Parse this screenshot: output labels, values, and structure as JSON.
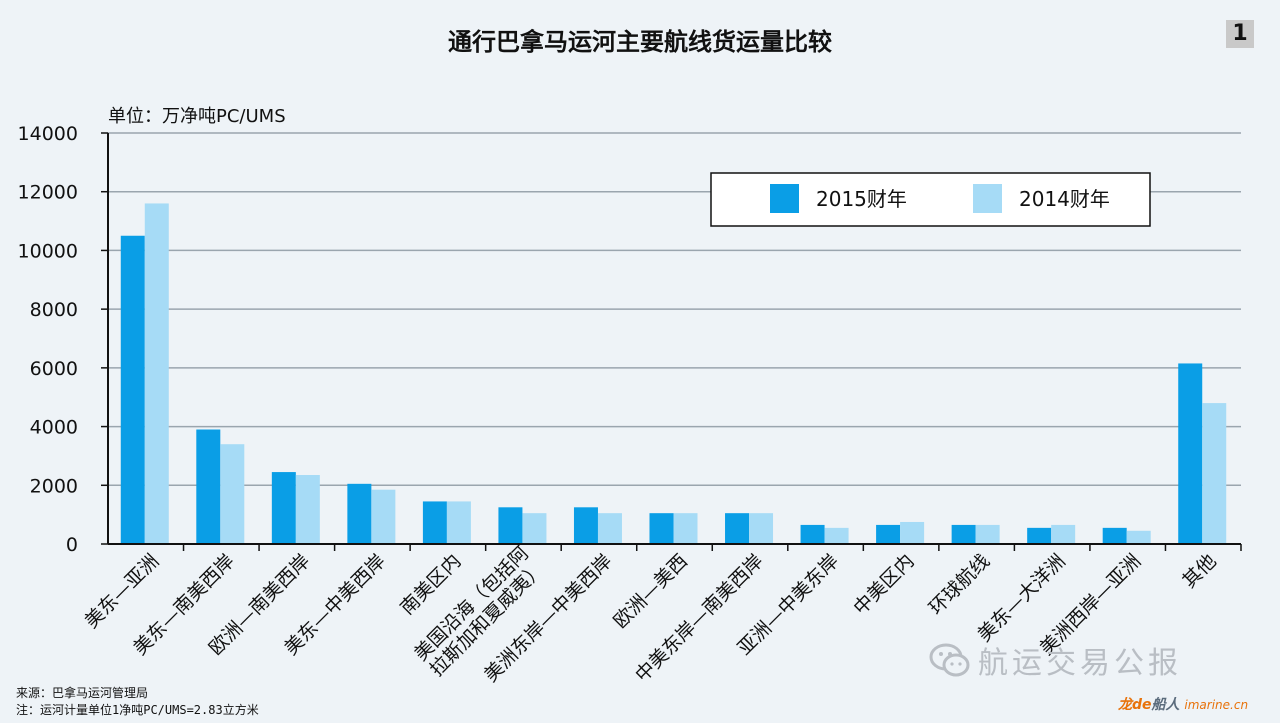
{
  "header": {
    "title": "通行巴拿马运河主要航线货运量比较",
    "page_number": "1",
    "unit": "单位：万净吨PC/UMS"
  },
  "chart_data": {
    "type": "bar",
    "categories": [
      "美东—亚洲",
      "美东—南美西岸",
      "欧洲—南美西岸",
      "美东—中美西岸",
      "南美区内",
      "美国沿海（包括阿拉斯加和夏威夷）",
      "美洲东岸—中美西岸",
      "欧洲—美西",
      "中美东岸—南美西岸",
      "亚洲—中美东岸",
      "中美区内",
      "环球航线",
      "美东—大洋洲",
      "美洲西岸—亚洲",
      "其他"
    ],
    "category_labels": [
      [
        "美东—亚洲"
      ],
      [
        "美东—南美西岸"
      ],
      [
        "欧洲—南美西岸"
      ],
      [
        "美东—中美西岸"
      ],
      [
        "南美区内"
      ],
      [
        "美国沿海（包括阿",
        "拉斯加和夏威夷）"
      ],
      [
        "美洲东岸—中美西岸"
      ],
      [
        "欧洲—美西"
      ],
      [
        "中美东岸—南美西岸"
      ],
      [
        "亚洲—中美东岸"
      ],
      [
        "中美区内"
      ],
      [
        "环球航线"
      ],
      [
        "美东—大洋洲"
      ],
      [
        "美洲西岸—亚洲"
      ],
      [
        "其他"
      ]
    ],
    "series": [
      {
        "name": "2015财年",
        "color": "#0a9ee6",
        "values": [
          10500,
          3900,
          2450,
          2050,
          1450,
          1250,
          1250,
          1050,
          1050,
          650,
          650,
          650,
          550,
          550,
          6150
        ]
      },
      {
        "name": "2014财年",
        "color": "#a6dbf6",
        "values": [
          11600,
          3400,
          2350,
          1850,
          1450,
          1050,
          1050,
          1050,
          1050,
          550,
          750,
          650,
          650,
          450,
          4800
        ]
      }
    ],
    "ylim": [
      0,
      14000
    ],
    "yticks": [
      0,
      2000,
      4000,
      6000,
      8000,
      10000,
      12000,
      14000
    ],
    "grid": true,
    "legend_position": "top-right"
  },
  "footer": {
    "source": "来源：巴拿马运河管理局",
    "note": "注：运河计量单位1净吨PC/UMS=2.83立方米",
    "wechat_account": "航运交易公报",
    "watermark_a": "龙de",
    "watermark_b": "船人",
    "watermark_c": "imarine.cn"
  },
  "colors": {
    "background": "#eef3f7",
    "axis": "#111111",
    "grid": "#9aa5ae"
  }
}
